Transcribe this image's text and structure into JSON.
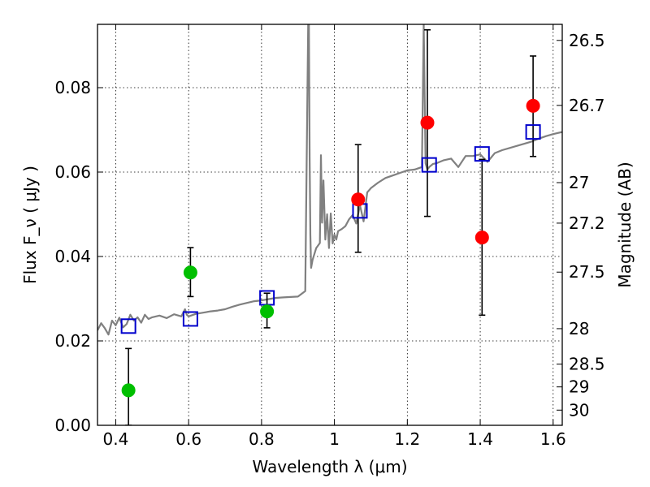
{
  "chart_data": {
    "type": "scatter",
    "xlabel": "Wavelength  λ (μm)",
    "ylabel": "Flux  F_ν  ( μJy )",
    "ylabel_right": "Magnitude (AB)",
    "xlim": [
      0.35,
      1.625
    ],
    "ylim": [
      0.0,
      0.095
    ],
    "grid": true,
    "xticks": [
      0.4,
      0.6,
      0.8,
      1.0,
      1.2,
      1.4,
      1.6
    ],
    "xtick_labels": [
      "0.4",
      "0.6",
      "0.8",
      "1",
      "1.2",
      "1.4",
      "1.6"
    ],
    "yticks": [
      0.0,
      0.02,
      0.04,
      0.06,
      0.08
    ],
    "ytick_labels": [
      "0.00",
      "0.02",
      "0.04",
      "0.06",
      "0.08"
    ],
    "right_ticks": [
      {
        "label": "26.5",
        "flux": 0.0912
      },
      {
        "label": "26.7",
        "flux": 0.0758
      },
      {
        "label": "27",
        "flux": 0.0575
      },
      {
        "label": "27.2",
        "flux": 0.0479
      },
      {
        "label": "27.5",
        "flux": 0.0363
      },
      {
        "label": "28",
        "flux": 0.0229
      },
      {
        "label": "28.5",
        "flux": 0.0145
      },
      {
        "label": "29",
        "flux": 0.0091
      },
      {
        "label": "30",
        "flux": 0.0036
      }
    ],
    "series": [
      {
        "marker": "circle",
        "color": "#00bf00",
        "points": [
          {
            "x": 0.435,
            "y": 0.0083,
            "yerr_low": 0.0,
            "yerr_high": 0.0182
          },
          {
            "x": 0.605,
            "y": 0.0362,
            "yerr_low": 0.0305,
            "yerr_high": 0.0421
          },
          {
            "x": 0.815,
            "y": 0.027,
            "yerr_low": 0.0231,
            "yerr_high": 0.0313
          }
        ]
      },
      {
        "marker": "circle",
        "color": "#ff0000",
        "points": [
          {
            "x": 1.065,
            "y": 0.0535,
            "yerr_low": 0.041,
            "yerr_high": 0.0665
          },
          {
            "x": 1.255,
            "y": 0.0717,
            "yerr_low": 0.0495,
            "yerr_high": 0.0937
          },
          {
            "x": 1.405,
            "y": 0.0445,
            "yerr_low": 0.0261,
            "yerr_high": 0.063
          },
          {
            "x": 1.545,
            "y": 0.0757,
            "yerr_low": 0.0637,
            "yerr_high": 0.0875
          }
        ]
      },
      {
        "marker": "square",
        "color": "#0000cc",
        "points": [
          {
            "x": 0.435,
            "y": 0.0235
          },
          {
            "x": 0.605,
            "y": 0.0252
          },
          {
            "x": 0.815,
            "y": 0.0302
          },
          {
            "x": 1.07,
            "y": 0.0508
          },
          {
            "x": 1.26,
            "y": 0.0617
          },
          {
            "x": 1.405,
            "y": 0.0643
          },
          {
            "x": 1.545,
            "y": 0.0695
          }
        ]
      },
      {
        "type": "line",
        "color": "#808080",
        "x": [
          0.35,
          0.36,
          0.37,
          0.38,
          0.39,
          0.4,
          0.41,
          0.42,
          0.43,
          0.44,
          0.45,
          0.46,
          0.47,
          0.48,
          0.49,
          0.5,
          0.52,
          0.54,
          0.56,
          0.58,
          0.59,
          0.595,
          0.6,
          0.62,
          0.64,
          0.66,
          0.68,
          0.7,
          0.72,
          0.74,
          0.76,
          0.78,
          0.8,
          0.82,
          0.84,
          0.86,
          0.88,
          0.9,
          0.92,
          0.928,
          0.93,
          0.932,
          0.934,
          0.936,
          0.94,
          0.95,
          0.96,
          0.963,
          0.966,
          0.97,
          0.975,
          0.98,
          0.985,
          0.99,
          0.995,
          1.0,
          1.005,
          1.01,
          1.02,
          1.03,
          1.04,
          1.05,
          1.06,
          1.07,
          1.08,
          1.09,
          1.1,
          1.12,
          1.14,
          1.16,
          1.18,
          1.2,
          1.22,
          1.24,
          1.245,
          1.25,
          1.255,
          1.26,
          1.27,
          1.28,
          1.3,
          1.32,
          1.34,
          1.36,
          1.38,
          1.4,
          1.42,
          1.44,
          1.46,
          1.48,
          1.5,
          1.52,
          1.54,
          1.56,
          1.58,
          1.6,
          1.625
        ],
        "y": [
          0.0225,
          0.0242,
          0.023,
          0.0215,
          0.0248,
          0.0237,
          0.0255,
          0.0232,
          0.024,
          0.0262,
          0.0248,
          0.0256,
          0.0243,
          0.0262,
          0.0252,
          0.0256,
          0.026,
          0.0254,
          0.0263,
          0.0258,
          0.0275,
          0.0262,
          0.0258,
          0.0264,
          0.0267,
          0.027,
          0.0272,
          0.0275,
          0.0281,
          0.0286,
          0.029,
          0.0294,
          0.0296,
          0.0299,
          0.0302,
          0.0303,
          0.0304,
          0.0305,
          0.0318,
          0.095,
          0.095,
          0.0632,
          0.0451,
          0.0373,
          0.0392,
          0.042,
          0.0432,
          0.064,
          0.048,
          0.058,
          0.044,
          0.05,
          0.042,
          0.0502,
          0.0431,
          0.0452,
          0.044,
          0.046,
          0.0465,
          0.0472,
          0.0488,
          0.0498,
          0.0478,
          0.0522,
          0.0483,
          0.0552,
          0.0562,
          0.0575,
          0.0586,
          0.0592,
          0.0598,
          0.0604,
          0.0606,
          0.0612,
          0.095,
          0.0621,
          0.0606,
          0.0612,
          0.0619,
          0.0621,
          0.0628,
          0.0632,
          0.0612,
          0.0638,
          0.0638,
          0.0642,
          0.0624,
          0.0645,
          0.0652,
          0.0657,
          0.0662,
          0.0667,
          0.0672,
          0.0679,
          0.0685,
          0.069,
          0.0695
        ]
      }
    ]
  }
}
